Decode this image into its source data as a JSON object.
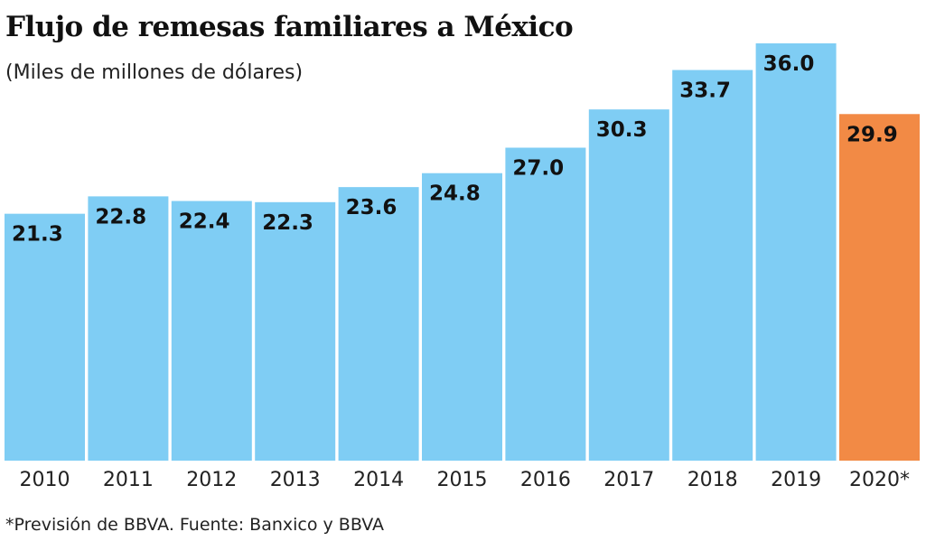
{
  "chart_data": {
    "type": "bar",
    "title": "Flujo de remesas familiares a México",
    "subtitle": "(Miles de millones de dólares)",
    "categories": [
      "2010",
      "2011",
      "2012",
      "2013",
      "2014",
      "2015",
      "2016",
      "2017",
      "2018",
      "2019",
      "2020*"
    ],
    "values": [
      21.3,
      22.8,
      22.4,
      22.3,
      23.6,
      24.8,
      27.0,
      30.3,
      33.7,
      36.0,
      29.9
    ],
    "value_labels": [
      "21.3",
      "22.8",
      "22.4",
      "22.3",
      "23.6",
      "24.8",
      "27.0",
      "30.3",
      "33.7",
      "36.0",
      "29.9"
    ],
    "ylim": [
      0,
      36.0
    ],
    "grid": false,
    "colors": {
      "actual": "#7FCDF4",
      "forecast": "#F28A45"
    },
    "highlighted_category": "2020*",
    "footnote": "*Previsión de BBVA. Fuente: Banxico y BBVA"
  }
}
